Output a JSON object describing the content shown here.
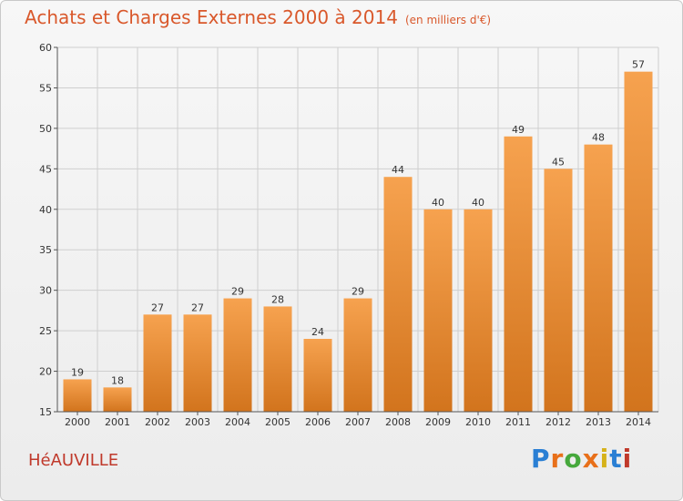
{
  "header": {
    "title": "Achats et Charges Externes 2000 à 2014",
    "unit": "(en milliers d'€)"
  },
  "footer": {
    "location": "HéAUVILLE",
    "brand": "Proxiti"
  },
  "colors": {
    "title": "#d9582b",
    "bar_top": "#f6a24f",
    "bar_bottom": "#d2741d",
    "grid": "#cfcfcf",
    "location": "#c0392b"
  },
  "chart_data": {
    "type": "bar",
    "categories": [
      "2000",
      "2001",
      "2002",
      "2003",
      "2004",
      "2005",
      "2006",
      "2007",
      "2008",
      "2009",
      "2010",
      "2011",
      "2012",
      "2013",
      "2014"
    ],
    "values": [
      19,
      18,
      27,
      27,
      29,
      28,
      24,
      29,
      44,
      40,
      40,
      49,
      45,
      48,
      57
    ],
    "ylim": [
      15,
      60
    ],
    "yticks": [
      15,
      20,
      25,
      30,
      35,
      40,
      45,
      50,
      55,
      60
    ],
    "grid": true
  }
}
